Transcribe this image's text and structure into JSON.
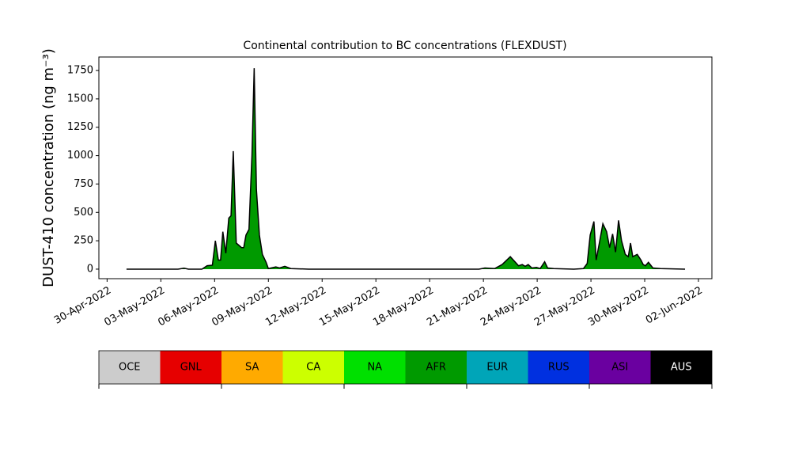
{
  "chart_data": {
    "type": "area",
    "title": "Continental contribution to BC concentrations (FLEXDUST)",
    "ylabel": "DUST-410 concentration (ng m⁻³)",
    "x": [
      "2022-05-01T02:00",
      "2022-05-03T23:00",
      "2022-05-04T07:00",
      "2022-05-04T13:00",
      "2022-05-05T07:00",
      "2022-05-05T14:00",
      "2022-05-05T21:00",
      "2022-05-06T01:00",
      "2022-05-06T05:00",
      "2022-05-06T08:00",
      "2022-05-06T11:00",
      "2022-05-06T15:00",
      "2022-05-06T19:00",
      "2022-05-06T22:00",
      "2022-05-07T01:00",
      "2022-05-07T05:00",
      "2022-05-07T12:00",
      "2022-05-07T15:00",
      "2022-05-07T18:00",
      "2022-05-07T22:00",
      "2022-05-08T02:00",
      "2022-05-08T05:00",
      "2022-05-08T08:00",
      "2022-05-08T12:00",
      "2022-05-08T16:00",
      "2022-05-08T21:00",
      "2022-05-09T00:00",
      "2022-05-09T10:00",
      "2022-05-09T15:00",
      "2022-05-09T22:00",
      "2022-05-10T06:00",
      "2022-05-11T06:00",
      "2022-05-20T18:00",
      "2022-05-21T02:00",
      "2022-05-21T15:00",
      "2022-05-22T01:00",
      "2022-05-22T12:00",
      "2022-05-22T23:00",
      "2022-05-23T04:00",
      "2022-05-23T08:00",
      "2022-05-23T12:00",
      "2022-05-23T17:00",
      "2022-05-23T23:00",
      "2022-05-24T04:00",
      "2022-05-24T10:00",
      "2022-05-24T14:00",
      "2022-05-24T22:00",
      "2022-05-26T01:00",
      "2022-05-26T14:00",
      "2022-05-26T19:00",
      "2022-05-26T23:00",
      "2022-05-27T04:00",
      "2022-05-27T07:00",
      "2022-05-27T11:00",
      "2022-05-27T16:00",
      "2022-05-27T21:00",
      "2022-05-28T01:00",
      "2022-05-28T05:00",
      "2022-05-28T09:00",
      "2022-05-28T13:00",
      "2022-05-28T17:00",
      "2022-05-28T22:00",
      "2022-05-29T02:00",
      "2022-05-29T05:00",
      "2022-05-29T08:00",
      "2022-05-29T14:00",
      "2022-05-29T19:00",
      "2022-05-29T22:00",
      "2022-05-30T01:00",
      "2022-05-30T05:00",
      "2022-05-30T11:00",
      "2022-05-30T21:00",
      "2022-06-01T06:00"
    ],
    "series": [
      {
        "name": "AFR",
        "color": "#009a00",
        "values": [
          0,
          0,
          8,
          0,
          0,
          30,
          35,
          250,
          80,
          80,
          330,
          140,
          450,
          470,
          1040,
          230,
          190,
          190,
          300,
          350,
          1000,
          1770,
          700,
          300,
          130,
          60,
          5,
          20,
          10,
          25,
          5,
          0,
          0,
          10,
          5,
          40,
          110,
          30,
          40,
          25,
          40,
          10,
          15,
          5,
          65,
          10,
          5,
          0,
          5,
          50,
          300,
          420,
          80,
          220,
          400,
          330,
          190,
          310,
          150,
          430,
          250,
          130,
          110,
          230,
          110,
          130,
          80,
          40,
          30,
          60,
          10,
          5,
          0
        ]
      }
    ],
    "outline_color": "#000000",
    "xlim": [
      "2022-04-29T13:00",
      "2022-06-02T18:00"
    ],
    "xticks": [
      {
        "value": "2022-04-30T00:00",
        "label": "30-Apr-2022"
      },
      {
        "value": "2022-05-03T00:00",
        "label": "03-May-2022"
      },
      {
        "value": "2022-05-06T00:00",
        "label": "06-May-2022"
      },
      {
        "value": "2022-05-09T00:00",
        "label": "09-May-2022"
      },
      {
        "value": "2022-05-12T00:00",
        "label": "12-May-2022"
      },
      {
        "value": "2022-05-15T00:00",
        "label": "15-May-2022"
      },
      {
        "value": "2022-05-18T00:00",
        "label": "18-May-2022"
      },
      {
        "value": "2022-05-21T00:00",
        "label": "21-May-2022"
      },
      {
        "value": "2022-05-24T00:00",
        "label": "24-May-2022"
      },
      {
        "value": "2022-05-27T00:00",
        "label": "27-May-2022"
      },
      {
        "value": "2022-05-30T00:00",
        "label": "30-May-2022"
      },
      {
        "value": "2022-06-02T00:00",
        "label": "02-Jun-2022"
      }
    ],
    "ylim": [
      -84,
      1869
    ],
    "yticks": [
      0,
      250,
      500,
      750,
      1000,
      1250,
      1500,
      1750
    ],
    "legend_regions": [
      {
        "name": "OCE",
        "color": "#cccccc"
      },
      {
        "name": "GNL",
        "color": "#e60000"
      },
      {
        "name": "SA",
        "color": "#ffaa00"
      },
      {
        "name": "CA",
        "color": "#ccff00"
      },
      {
        "name": "NA",
        "color": "#00e000"
      },
      {
        "name": "AFR",
        "color": "#009a00"
      },
      {
        "name": "EUR",
        "color": "#00a5b8"
      },
      {
        "name": "RUS",
        "color": "#0030e0"
      },
      {
        "name": "ASI",
        "color": "#6a00a0"
      },
      {
        "name": "AUS",
        "color": "#000000"
      }
    ]
  }
}
